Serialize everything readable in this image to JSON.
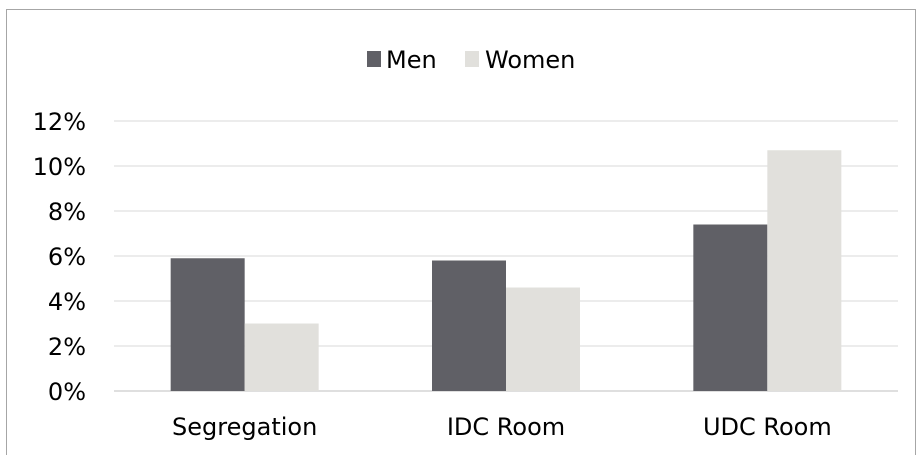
{
  "chart_data": {
    "type": "bar",
    "title": "",
    "xlabel": "",
    "ylabel": "",
    "categories": [
      "Segregation",
      "IDC Room",
      "UDC Room"
    ],
    "series": [
      {
        "name": "Men",
        "values": [
          5.9,
          5.8,
          7.4
        ],
        "color": "#606066"
      },
      {
        "name": "Women",
        "values": [
          3.0,
          4.6,
          10.7
        ],
        "color": "#e1e0dc"
      }
    ],
    "ylim": [
      0,
      12
    ],
    "y_ticks": [
      0,
      2,
      4,
      6,
      8,
      10,
      12
    ],
    "y_tick_format": "percent",
    "grid": true,
    "grid_color": "#d9d9d9",
    "legend_position": "top-center"
  }
}
